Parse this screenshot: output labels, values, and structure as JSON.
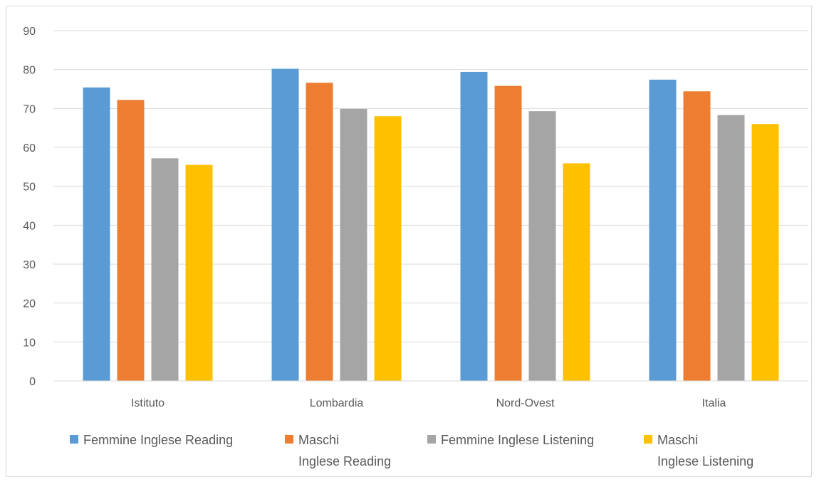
{
  "chart_data": {
    "type": "bar",
    "categories": [
      "Istituto",
      "Lombardia",
      "Nord-Ovest",
      "Italia"
    ],
    "series": [
      {
        "name": "Femmine Inglese Reading",
        "legend_lines": [
          "Femmine Inglese Reading"
        ],
        "color": "#5b9bd5",
        "values": [
          75.4,
          80.2,
          79.4,
          77.4
        ]
      },
      {
        "name": "Maschi Inglese Reading",
        "legend_lines": [
          "Maschi",
          "Inglese Reading"
        ],
        "color": "#ed7d31",
        "values": [
          72.2,
          76.6,
          75.8,
          74.4
        ]
      },
      {
        "name": "Femmine Inglese Listening",
        "legend_lines": [
          "Femmine Inglese Listening"
        ],
        "color": "#a5a5a5",
        "values": [
          57.2,
          69.9,
          69.3,
          68.3
        ]
      },
      {
        "name": "Maschi Inglese Listening",
        "legend_lines": [
          "Maschi",
          "Inglese Listening"
        ],
        "color": "#ffc000",
        "values": [
          55.5,
          68.0,
          55.9,
          66.0
        ]
      }
    ],
    "title": "",
    "xlabel": "",
    "ylabel": "",
    "ylim": [
      0,
      90
    ],
    "yticks": [
      "0",
      "10",
      "20",
      "30",
      "40",
      "50",
      "60",
      "70",
      "80",
      "90"
    ],
    "grid": true,
    "legend_position": "bottom"
  }
}
